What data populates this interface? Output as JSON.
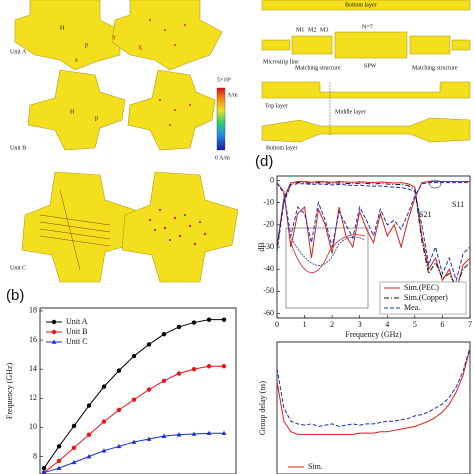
{
  "panels": {
    "b": "(b)",
    "d": "(d)"
  },
  "unit_cells": {
    "labels": [
      "Unit A",
      "Unit B",
      "Unit C"
    ],
    "colorbar_max": "5×10⁶",
    "colorbar_unit": "A/m",
    "colorbar_min": "0 A/m",
    "dim_H": "H",
    "dim_p": "p",
    "dim_a": "a",
    "axis_y": "Y",
    "axis_x": "X"
  },
  "structure": {
    "bottom_layer": "Bottom layer",
    "m1": "M1",
    "m2": "M2",
    "m3": "M3",
    "n": "N=7",
    "microstrip": "Microstrip line",
    "matching_left": "Matching structure",
    "spw": "SPW",
    "matching_right": "Matching structure",
    "top_layer": "Top layer",
    "middle_layer": "Middle layer",
    "bottom_layer_2": "Bottom layer"
  },
  "chart_data": [
    {
      "type": "line",
      "ylabel": "Frequency (GHz)",
      "ylim": [
        6.8,
        18.2
      ],
      "yticks": [
        8,
        10,
        12,
        14,
        16,
        18
      ],
      "legend": "upper left",
      "series": [
        {
          "name": "Unit A",
          "color": "#000000",
          "marker": "circle",
          "dash": "solid",
          "values": [
            7.2,
            8.7,
            10.1,
            11.5,
            12.8,
            13.9,
            14.9,
            15.7,
            16.4,
            16.9,
            17.2,
            17.4,
            17.4
          ]
        },
        {
          "name": "Unit B",
          "color": "#e8161b",
          "marker": "circle",
          "dash": "solid",
          "values": [
            6.9,
            7.7,
            8.6,
            9.5,
            10.4,
            11.2,
            11.9,
            12.6,
            13.2,
            13.7,
            14.0,
            14.2,
            14.2
          ]
        },
        {
          "name": "Unit C",
          "color": "#1a2fd6",
          "marker": "triangle",
          "dash": "solid",
          "values": [
            6.9,
            7.2,
            7.6,
            8.0,
            8.4,
            8.7,
            9.0,
            9.2,
            9.4,
            9.5,
            9.55,
            9.6,
            9.6
          ]
        }
      ]
    },
    {
      "type": "line",
      "xlabel": "Frequency (GHz)",
      "ylabel": "dB",
      "xlim": [
        0,
        7
      ],
      "xticks": [
        0,
        1,
        2,
        3,
        4,
        5,
        6,
        7
      ],
      "ylim": [
        -62,
        2
      ],
      "yticks": [
        0,
        -10,
        -20,
        -30,
        -40,
        -50,
        -60
      ],
      "legend": "lower right",
      "annotations": [
        "S11",
        "S21"
      ],
      "x": [
        0,
        0.25,
        0.5,
        0.75,
        1,
        1.25,
        1.5,
        1.75,
        2,
        2.25,
        2.5,
        2.75,
        3,
        3.25,
        3.5,
        3.75,
        4,
        4.25,
        4.5,
        4.75,
        5,
        5.25,
        5.5,
        5.75,
        6,
        6.25,
        6.5,
        6.75,
        7
      ],
      "series": [
        {
          "name": "Sim.(PEC)",
          "color": "#d42020",
          "dash": "solid",
          "values": [
            -30,
            -8,
            -1,
            -0.5,
            -0.5,
            -0.8,
            -0.5,
            -0.6,
            -0.8,
            -0.5,
            -0.7,
            -0.9,
            -0.6,
            -0.8,
            -1,
            -0.7,
            -0.9,
            -1.2,
            -1,
            -1.5,
            -3,
            -25,
            -40,
            -35,
            -45,
            -40,
            -50,
            -38,
            -35
          ]
        },
        {
          "name": "Sim.(Copper)",
          "color": "#111111",
          "dash": "dashdot",
          "values": [
            -30,
            -9,
            -1.5,
            -1,
            -1,
            -1.3,
            -1,
            -1.1,
            -1.3,
            -1.1,
            -1.3,
            -1.5,
            -1.2,
            -1.4,
            -1.6,
            -1.4,
            -1.6,
            -1.9,
            -1.8,
            -2.3,
            -4,
            -27,
            -42,
            -37,
            -44,
            -42,
            -48,
            -40,
            -37
          ]
        },
        {
          "name": "Mea.",
          "color": "#1c2fb8",
          "dash": "dashed",
          "values": [
            -32,
            -10,
            -2,
            -1.5,
            -1.5,
            -1.8,
            -1.6,
            -1.8,
            -2,
            -1.8,
            -2,
            -2.3,
            -2.1,
            -2.4,
            -2.6,
            -2.5,
            -2.8,
            -3,
            -3.2,
            -3.8,
            -5,
            -20,
            -38,
            -30,
            -42,
            -35,
            -45,
            -33,
            -30
          ]
        },
        {
          "color": "#d42020",
          "dash": "solid",
          "values": [
            -1,
            -5,
            -30,
            -15,
            -12,
            -35,
            -13,
            -20,
            -33,
            -12,
            -25,
            -30,
            -14,
            -22,
            -28,
            -15,
            -25,
            -20,
            -30,
            -18,
            -8,
            -1,
            -0.5,
            -0.5,
            -0.5,
            -0.5,
            -0.5,
            -0.5,
            -0.5
          ]
        },
        {
          "color": "#1c2fb8",
          "dash": "dashed",
          "values": [
            -1,
            -6,
            -25,
            -12,
            -15,
            -28,
            -10,
            -18,
            -30,
            -14,
            -20,
            -26,
            -12,
            -18,
            -25,
            -13,
            -20,
            -18,
            -22,
            -15,
            -7,
            -1.5,
            -1,
            -1,
            -1,
            -1,
            -1,
            -1,
            -1
          ]
        }
      ]
    },
    {
      "type": "line",
      "ylabel": "Group delay (ns)",
      "xlim": [
        0,
        7
      ],
      "ylim": [
        0,
        10
      ],
      "legend": "lower left",
      "x": [
        0,
        0.25,
        0.5,
        0.75,
        1,
        1.25,
        1.5,
        1.75,
        2,
        2.25,
        2.5,
        2.75,
        3,
        3.25,
        3.5,
        3.75,
        4,
        4.25,
        4.5,
        4.75,
        5,
        5.25,
        5.5,
        5.75,
        6,
        6.25,
        6.5,
        6.75,
        7
      ],
      "series": [
        {
          "name": "Sim.",
          "color": "#d42020",
          "dash": "solid",
          "values": [
            7,
            4,
            3.2,
            3,
            3,
            3,
            3,
            3,
            3,
            3,
            3,
            3,
            3.1,
            3.1,
            3.1,
            3.2,
            3.2,
            3.3,
            3.4,
            3.5,
            3.6,
            3.8,
            4,
            4.3,
            4.7,
            5.3,
            6.2,
            7.5,
            9.5
          ]
        },
        {
          "color": "#1c2fb8",
          "dash": "dashed",
          "values": [
            8,
            5,
            4,
            3.8,
            3.7,
            3.8,
            3.6,
            3.7,
            3.8,
            3.6,
            3.7,
            3.8,
            3.7,
            3.8,
            3.8,
            3.9,
            4,
            4,
            4.1,
            4.2,
            4.4,
            4.5,
            4.7,
            5,
            5.3,
            5.8,
            6.6,
            7.8,
            9.6
          ]
        }
      ]
    }
  ]
}
